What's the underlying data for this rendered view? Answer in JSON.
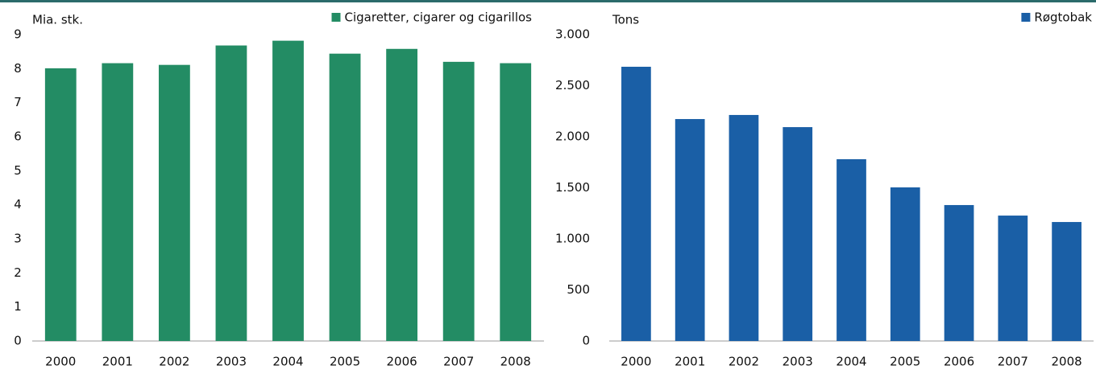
{
  "chart_data": [
    {
      "type": "bar",
      "axis_label": "Mia. stk.",
      "categories": [
        "2000",
        "2001",
        "2002",
        "2003",
        "2004",
        "2005",
        "2006",
        "2007",
        "2008"
      ],
      "series": [
        {
          "name": "Cigaretter, cigarer og cigarillos",
          "color": "#238c64",
          "values": [
            8.01,
            8.16,
            8.11,
            8.68,
            8.82,
            8.44,
            8.58,
            8.2,
            8.16
          ]
        }
      ],
      "ylim": [
        0,
        9
      ],
      "yticks": [
        0,
        1,
        2,
        3,
        4,
        5,
        6,
        7,
        8,
        9
      ],
      "legend": "top-right"
    },
    {
      "type": "bar",
      "axis_label": "Tons",
      "categories": [
        "2000",
        "2001",
        "2002",
        "2003",
        "2004",
        "2005",
        "2006",
        "2007",
        "2008"
      ],
      "series": [
        {
          "name": "Røgtobak",
          "color": "#1a5fa6",
          "values": [
            2685,
            2173,
            2213,
            2094,
            1780,
            1504,
            1331,
            1228,
            1165
          ]
        }
      ],
      "ylim": [
        0,
        3000
      ],
      "yticks": [
        0,
        500,
        {
          "value": 1000,
          "label": "1.000"
        },
        {
          "value": 1500,
          "label": "1.500"
        },
        {
          "value": 2000,
          "label": "2.000"
        },
        {
          "value": 2500,
          "label": "2.500"
        },
        {
          "value": 3000,
          "label": "3.000"
        }
      ],
      "legend": "top-right"
    }
  ]
}
